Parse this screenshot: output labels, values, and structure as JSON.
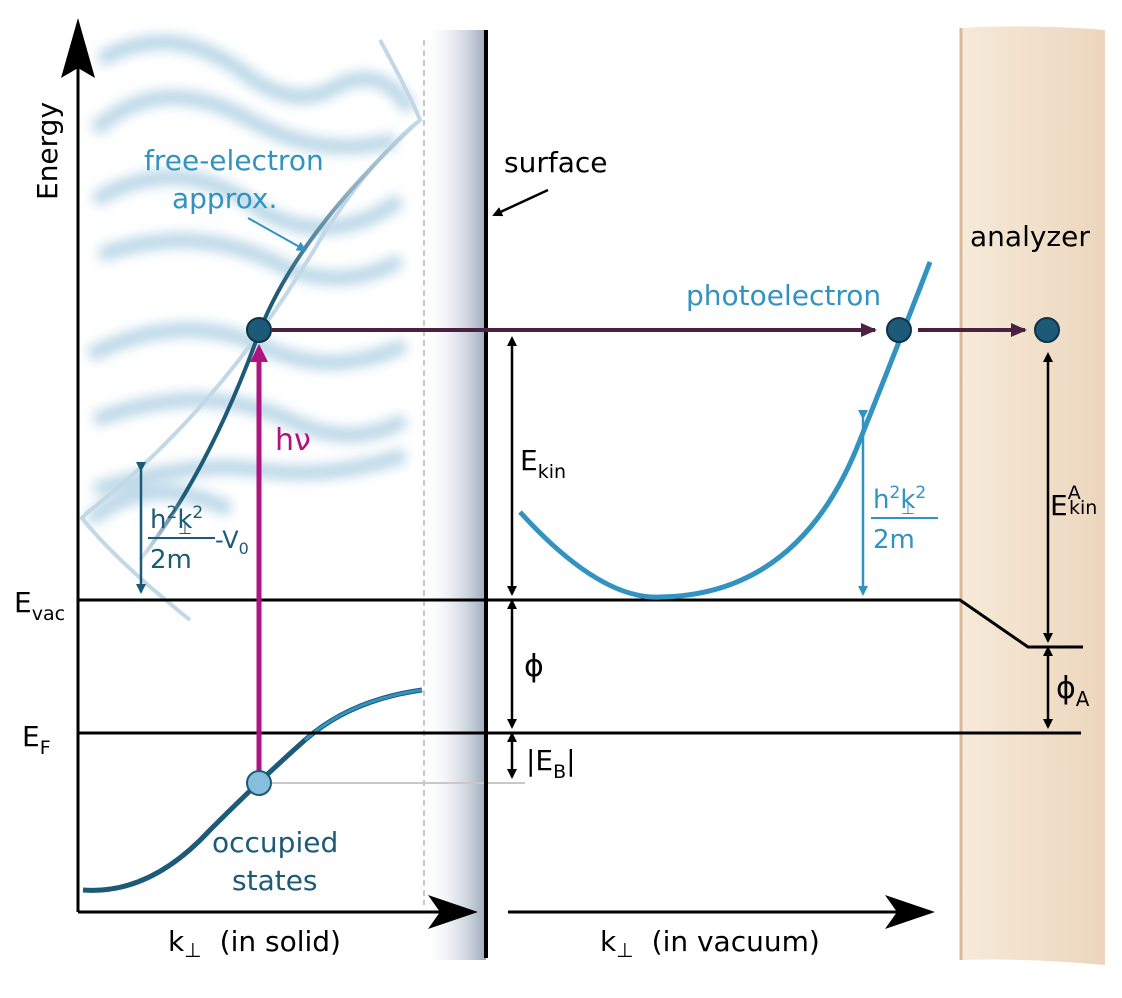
{
  "axes": {
    "y_label": "Energy",
    "x_solid_symbol": "k",
    "x_solid_suffix": "(in solid)",
    "x_vacuum_symbol": "k",
    "x_vacuum_suffix": "(in vacuum)",
    "perp_sub": "⊥"
  },
  "labels": {
    "surface": "surface",
    "analyzer": "analyzer",
    "free_electron_line1": "free-electron",
    "free_electron_line2": "approx.",
    "photoelectron": "photoelectron",
    "occupied_line1": "occupied",
    "occupied_line2": "states",
    "photon": "hν"
  },
  "levels": {
    "evac_main": "E",
    "evac_sub": "vac",
    "ef_main": "E",
    "ef_sub": "F"
  },
  "quantities": {
    "ekin_main": "E",
    "ekin_sub": "kin",
    "ekin_a_main": "E",
    "ekin_a_sub": "kin",
    "ekin_a_sup": "A",
    "phi": "ϕ",
    "phi_a_main": "ϕ",
    "phi_a_sub": "A",
    "eb_open": "|E",
    "eb_sub": "B",
    "eb_close": "|",
    "inner_num_h": "h",
    "inner_num_sup1": "2",
    "inner_num_k": "k",
    "inner_num_sub": "⊥",
    "inner_num_sup2": "2",
    "inner_den": "2m",
    "inner_minus": "-V",
    "inner_v_sub": "0",
    "vac_num_h": "h",
    "vac_num_sup1": "2",
    "vac_num_k": "k",
    "vac_num_sub": "⊥",
    "vac_num_sup2": "2",
    "vac_den": "2m"
  },
  "colors": {
    "axis": "#000000",
    "band_dark": "#1d5a78",
    "band_light": "#3393c0",
    "blur": "#a9cde1",
    "photon": "#b0127f",
    "transition": "#4a2140",
    "dot_dark": "#1d5a78",
    "dot_light": "#86bfdc",
    "analyzer": "#ecd9c4",
    "surface_shade": "#9aa9bb",
    "grey": "#c8c8c8"
  }
}
